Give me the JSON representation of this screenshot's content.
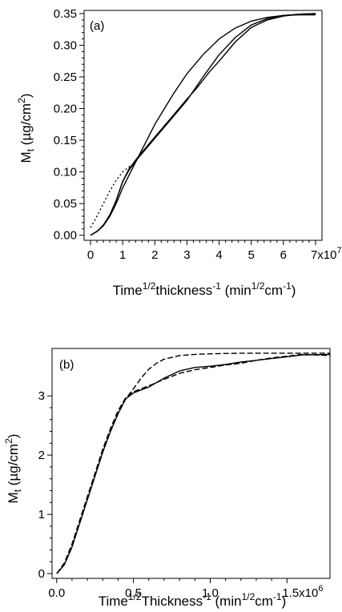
{
  "chart_data": [
    {
      "type": "line",
      "panel_label": "(a)",
      "xlabel": "Time^1/2 thickness^-1 (min^1/2 cm^-1)",
      "ylabel": "Mt (µg/cm^2)",
      "xlim": [
        -0.2,
        7.2
      ],
      "ylim": [
        -0.008,
        0.355
      ],
      "x_ticks": [
        0,
        1,
        2,
        3,
        4,
        5,
        6,
        7
      ],
      "x_tick_labels": [
        "0",
        "1",
        "2",
        "3",
        "4",
        "5",
        "6",
        "7x10^7"
      ],
      "y_ticks": [
        0.0,
        0.05,
        0.1,
        0.15,
        0.2,
        0.25,
        0.3,
        0.35
      ],
      "y_tick_labels": [
        "0.00",
        "0.05",
        "0.10",
        "0.15",
        "0.20",
        "0.25",
        "0.30",
        "0.35"
      ],
      "grid": false,
      "series": [
        {
          "style": "solid",
          "x": [
            0,
            0.2,
            0.4,
            0.6,
            0.8,
            1.0,
            1.2,
            1.5,
            1.8,
            2.0,
            2.3,
            2.6,
            3.0,
            3.5,
            4.0,
            4.5,
            5.0,
            5.5,
            6.0,
            6.5,
            7.0
          ],
          "y": [
            0.0,
            0.006,
            0.015,
            0.03,
            0.05,
            0.075,
            0.095,
            0.125,
            0.155,
            0.175,
            0.2,
            0.225,
            0.255,
            0.285,
            0.31,
            0.327,
            0.338,
            0.344,
            0.347,
            0.348,
            0.348
          ]
        },
        {
          "style": "solid",
          "x": [
            0,
            0.2,
            0.4,
            0.6,
            0.8,
            1.0,
            1.2,
            1.5,
            2.0,
            2.5,
            3.0,
            3.3,
            3.5,
            3.7,
            4.0,
            4.5,
            5.0,
            5.5,
            6.0,
            6.5,
            7.0
          ],
          "y": [
            0.0,
            0.006,
            0.016,
            0.032,
            0.055,
            0.085,
            0.105,
            0.125,
            0.155,
            0.185,
            0.215,
            0.232,
            0.245,
            0.258,
            0.275,
            0.305,
            0.328,
            0.34,
            0.346,
            0.349,
            0.35
          ]
        },
        {
          "style": "solid",
          "x": [
            0,
            0.2,
            0.4,
            0.6,
            0.8,
            1.0,
            1.2,
            1.5,
            2.0,
            2.5,
            3.0,
            3.5,
            4.0,
            4.5,
            5.0,
            5.5,
            6.0,
            6.5,
            7.0
          ],
          "y": [
            0.0,
            0.006,
            0.016,
            0.032,
            0.055,
            0.085,
            0.103,
            0.123,
            0.153,
            0.183,
            0.213,
            0.25,
            0.285,
            0.312,
            0.332,
            0.342,
            0.347,
            0.349,
            0.35
          ]
        },
        {
          "style": "dotted",
          "x": [
            0,
            0.2,
            0.4,
            0.6,
            0.8,
            1.0,
            1.2,
            1.4
          ],
          "y": [
            0.012,
            0.03,
            0.05,
            0.07,
            0.087,
            0.1,
            0.108,
            0.115
          ]
        }
      ]
    },
    {
      "type": "line",
      "panel_label": "(b)",
      "xlabel": "Time^1/2 Thickness^-1 (min^1/2 cm^-1)",
      "ylabel": "Mt (µg/cm^2)",
      "xlim": [
        -0.03,
        1.78
      ],
      "ylim": [
        -0.08,
        3.8
      ],
      "x_ticks": [
        0.0,
        0.5,
        1.0,
        1.5
      ],
      "x_tick_labels": [
        "0.0",
        "0.5",
        "1.0",
        "1.5x10^6"
      ],
      "y_ticks": [
        0,
        1,
        2,
        3
      ],
      "y_tick_labels": [
        "0",
        "1",
        "2",
        "3"
      ],
      "grid": false,
      "series": [
        {
          "style": "dashed",
          "x": [
            0,
            0.05,
            0.1,
            0.15,
            0.2,
            0.25,
            0.3,
            0.35,
            0.4,
            0.45,
            0.5,
            0.55,
            0.6,
            0.65,
            0.7,
            0.8,
            0.9,
            1.0,
            1.2,
            1.4,
            1.6,
            1.78
          ],
          "y": [
            0.0,
            0.15,
            0.45,
            0.85,
            1.25,
            1.65,
            2.05,
            2.4,
            2.7,
            2.95,
            3.12,
            3.3,
            3.45,
            3.55,
            3.62,
            3.68,
            3.7,
            3.71,
            3.72,
            3.72,
            3.72,
            3.72
          ]
        },
        {
          "style": "solid",
          "x": [
            0,
            0.05,
            0.1,
            0.15,
            0.2,
            0.25,
            0.3,
            0.35,
            0.4,
            0.45,
            0.5,
            0.55,
            0.6,
            0.7,
            0.8,
            0.9,
            1.0,
            1.1,
            1.2,
            1.3,
            1.4,
            1.5,
            1.6,
            1.78
          ],
          "y": [
            0.0,
            0.15,
            0.45,
            0.85,
            1.25,
            1.65,
            2.05,
            2.4,
            2.7,
            2.95,
            3.05,
            3.1,
            3.15,
            3.3,
            3.42,
            3.48,
            3.5,
            3.53,
            3.57,
            3.6,
            3.63,
            3.66,
            3.69,
            3.7
          ]
        },
        {
          "style": "dashed",
          "x": [
            0,
            0.05,
            0.1,
            0.15,
            0.2,
            0.25,
            0.3,
            0.35,
            0.4,
            0.45,
            0.5,
            0.55,
            0.6,
            0.7,
            0.8,
            0.9,
            1.0,
            1.1,
            1.2,
            1.3,
            1.4,
            1.5,
            1.6,
            1.78
          ],
          "y": [
            0.0,
            0.18,
            0.5,
            0.9,
            1.3,
            1.7,
            2.1,
            2.45,
            2.75,
            2.97,
            3.07,
            3.12,
            3.17,
            3.28,
            3.38,
            3.44,
            3.48,
            3.52,
            3.55,
            3.6,
            3.64,
            3.67,
            3.7,
            3.68
          ]
        }
      ]
    }
  ]
}
